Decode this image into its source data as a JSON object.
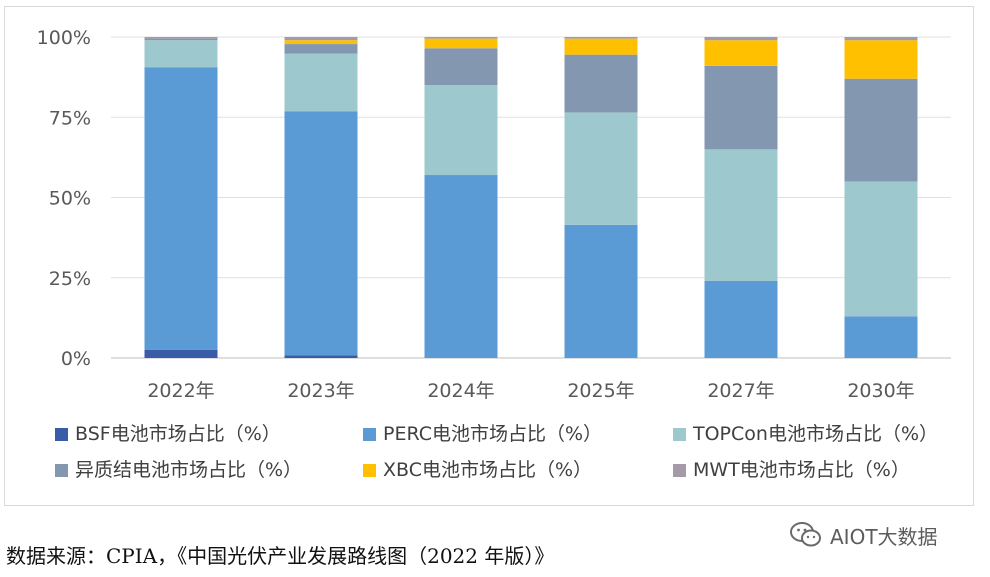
{
  "chart_data": {
    "type": "bar",
    "stacked": true,
    "categories": [
      "2022年",
      "2023年",
      "2024年",
      "2025年",
      "2027年",
      "2030年"
    ],
    "ylim": [
      0,
      100
    ],
    "yticks": [
      "0%",
      "25%",
      "50%",
      "75%",
      "100%"
    ],
    "ytick_values": [
      0,
      25,
      50,
      75,
      100
    ],
    "grid": "horizontal",
    "legend_position": "bottom",
    "series": [
      {
        "name": "BSF电池市场占比（%）",
        "color": "#3a5ba8",
        "values": [
          2.5,
          0.8,
          0,
          0,
          0,
          0
        ]
      },
      {
        "name": "PERC电池市场占比（%）",
        "color": "#5b9bd5",
        "values": [
          88,
          76,
          57,
          41.5,
          24,
          13
        ]
      },
      {
        "name": "TOPCon电池市场占比（%）",
        "color": "#9dc8cd",
        "values": [
          8.5,
          18,
          28,
          35,
          41,
          42
        ]
      },
      {
        "name": "异质结电池市场占比（%）",
        "color": "#8497b0",
        "values": [
          0.5,
          3,
          11.5,
          18,
          26,
          32
        ]
      },
      {
        "name": "XBC电池市场占比（%）",
        "color": "#ffc000",
        "values": [
          0,
          1.2,
          3,
          5,
          8,
          12
        ]
      },
      {
        "name": "MWT电池市场占比（%）",
        "color": "#a49aa8",
        "values": [
          0.5,
          1,
          0.5,
          0.5,
          1,
          1
        ]
      }
    ]
  },
  "source_text": "数据来源：CPIA，《中国光伏产业发展路线图（2022 年版）》",
  "watermark_text": "AIOT大数据"
}
